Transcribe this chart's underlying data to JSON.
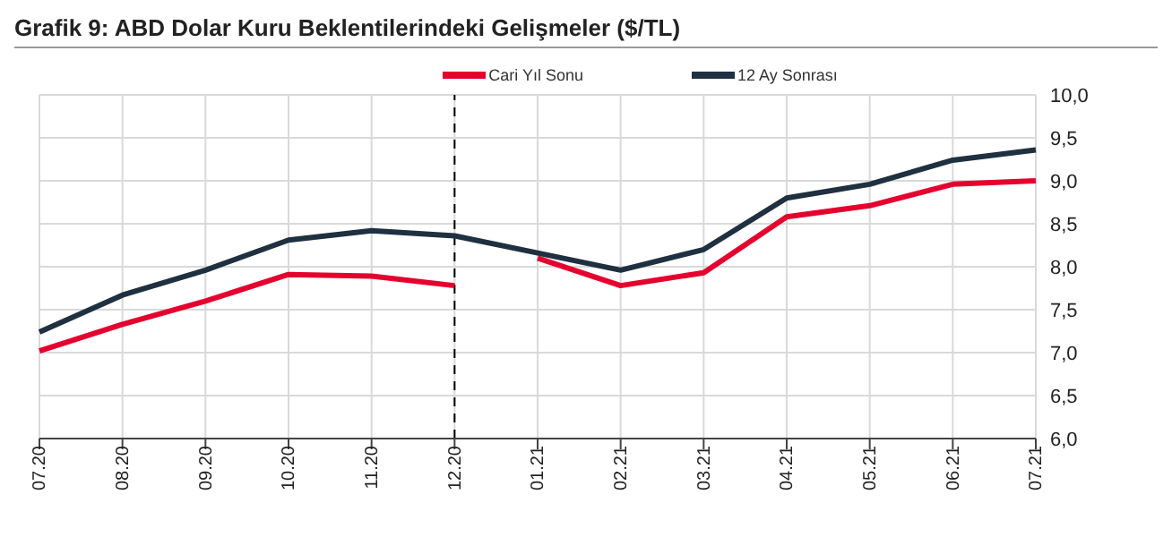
{
  "chart_data": {
    "type": "line",
    "title": "Grafik 9: ABD Dolar Kuru Beklentilerindeki Gelişmeler ($/TL)",
    "categories": [
      "07.20",
      "08.20",
      "09.20",
      "10.20",
      "11.20",
      "12.20",
      "01.21",
      "02.21",
      "03.21",
      "04.21",
      "05.21",
      "06.21",
      "07.21"
    ],
    "series": [
      {
        "name": "Cari Yıl Sonu",
        "color": "#e4032e",
        "values": [
          7.02,
          7.33,
          7.6,
          7.91,
          7.89,
          7.78,
          null,
          null,
          null,
          null,
          null,
          null,
          null
        ]
      },
      {
        "color": "#e4032e",
        "values": [
          null,
          null,
          null,
          null,
          null,
          null,
          8.1,
          7.78,
          7.93,
          8.58,
          8.71,
          8.96,
          9.0
        ]
      },
      {
        "name": "12 Ay Sonrası",
        "color": "#1f3040",
        "values": [
          7.24,
          7.67,
          7.96,
          8.31,
          8.42,
          8.36,
          8.16,
          7.96,
          8.2,
          8.8,
          8.96,
          9.24,
          9.36
        ]
      }
    ],
    "ylim": [
      6,
      10
    ],
    "yticks": [
      {
        "value": 6,
        "label": "6,0"
      },
      {
        "value": 6.5,
        "label": "6,5"
      },
      {
        "value": 7,
        "label": "7,0"
      },
      {
        "value": 7.5,
        "label": "7,5"
      },
      {
        "value": 8,
        "label": "8,0"
      },
      {
        "value": 8.5,
        "label": "8,5"
      },
      {
        "value": 9,
        "label": "9,0"
      },
      {
        "value": 9.5,
        "label": "9,5"
      },
      {
        "value": 10,
        "label": "10,0"
      }
    ],
    "grid": true,
    "legend": "top",
    "line_style": "solid",
    "marker": "none",
    "ref_lines": [
      {
        "axis": "x",
        "value": "12.20",
        "color": "#000000",
        "line_style": "dashed"
      }
    ]
  }
}
